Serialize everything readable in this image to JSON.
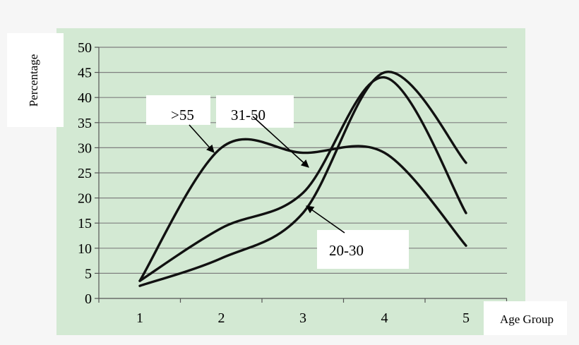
{
  "chart_data": {
    "type": "line",
    "title": "",
    "ylabel": "Percentage",
    "xlabel": "Age Group",
    "x": [
      1,
      2,
      3,
      4,
      5
    ],
    "ylim": [
      0,
      50
    ],
    "y_ticks": [
      0,
      5,
      10,
      15,
      20,
      25,
      30,
      35,
      40,
      45,
      50
    ],
    "grid": true,
    "smooth": true,
    "series": [
      {
        "name": ">55",
        "values": [
          3.5,
          30,
          29,
          29,
          10.5
        ]
      },
      {
        "name": "31-50",
        "values": [
          3.5,
          14,
          21,
          44,
          17
        ]
      },
      {
        "name": "20-30",
        "values": [
          2.5,
          8,
          17,
          45,
          27
        ]
      }
    ],
    "annotations": [
      {
        "text": ">55",
        "series": ">55",
        "points_to_x": 2
      },
      {
        "text": "31-50",
        "series": "31-50",
        "points_to_x": 3.1
      },
      {
        "text": "20-30",
        "series": "20-30",
        "points_to_x": 3.05
      }
    ],
    "colors": {
      "plot_bg": "#d3e9d3",
      "line": "#111111",
      "grid": "#7f7f7f",
      "page_bg": "#f6f6f6"
    }
  }
}
